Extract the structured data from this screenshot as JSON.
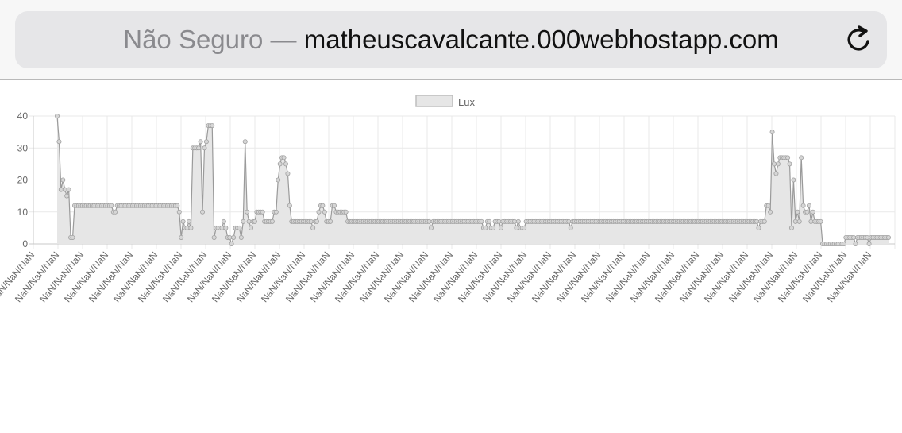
{
  "browser": {
    "insecure_label": "Não Seguro —",
    "domain": "matheuscavalcante.000webhostapp.com",
    "reload_icon": "reload-icon"
  },
  "chart_data": {
    "type": "line",
    "legend": {
      "label": "Lux",
      "position": "top"
    },
    "ylim": [
      0,
      40
    ],
    "yticks": [
      "0",
      "10",
      "20",
      "30",
      "40"
    ],
    "grid": true,
    "fill_color": "#e6e6e6",
    "line_color": "#9a9a9a",
    "x_tick_labels": [
      "NaN/NaN/NaN",
      "NaN/NaN/NaN",
      "NaN/NaN/NaN",
      "NaN/NaN/NaN",
      "NaN/NaN/NaN",
      "NaN/NaN/NaN",
      "NaN/NaN/NaN",
      "NaN/NaN/NaN",
      "NaN/NaN/NaN",
      "NaN/NaN/NaN",
      "NaN/NaN/NaN",
      "NaN/NaN/NaN",
      "NaN/NaN/NaN",
      "NaN/NaN/NaN",
      "NaN/NaN/NaN",
      "NaN/NaN/NaN",
      "NaN/NaN/NaN",
      "NaN/NaN/NaN",
      "NaN/NaN/NaN",
      "NaN/NaN/NaN",
      "NaN/NaN/NaN",
      "NaN/NaN/NaN",
      "NaN/NaN/NaN",
      "NaN/NaN/NaN",
      "NaN/NaN/NaN",
      "NaN/NaN/NaN",
      "NaN/NaN/NaN",
      "NaN/NaN/NaN",
      "NaN/NaN/NaN",
      "NaN/NaN/NaN",
      "NaN/NaN/NaN",
      "NaN/NaN/NaN",
      "NaN/NaN/NaN",
      "NaN/NaN/NaN",
      "NaN/NaN/NaN"
    ],
    "series": [
      {
        "name": "Lux",
        "values": [
          40,
          32,
          17,
          20,
          17,
          15,
          17,
          2,
          2,
          12,
          12,
          12,
          12,
          12,
          12,
          12,
          12,
          12,
          12,
          12,
          12,
          12,
          12,
          12,
          12,
          12,
          12,
          12,
          12,
          10,
          10,
          12,
          12,
          12,
          12,
          12,
          12,
          12,
          12,
          12,
          12,
          12,
          12,
          12,
          12,
          12,
          12,
          12,
          12,
          12,
          12,
          12,
          12,
          12,
          12,
          12,
          12,
          12,
          12,
          12,
          12,
          12,
          12,
          10,
          2,
          7,
          5,
          5,
          7,
          5,
          30,
          30,
          30,
          30,
          32,
          10,
          30,
          32,
          37,
          37,
          37,
          2,
          5,
          5,
          5,
          5,
          7,
          5,
          2,
          2,
          0,
          2,
          5,
          5,
          5,
          2,
          7,
          32,
          10,
          7,
          5,
          7,
          7,
          10,
          10,
          10,
          10,
          7,
          7,
          7,
          7,
          7,
          10,
          10,
          20,
          25,
          27,
          27,
          25,
          22,
          12,
          7,
          7,
          7,
          7,
          7,
          7,
          7,
          7,
          7,
          7,
          7,
          5,
          7,
          7,
          10,
          12,
          12,
          10,
          7,
          7,
          7,
          12,
          12,
          10,
          10,
          10,
          10,
          10,
          10,
          7,
          7,
          7,
          7,
          7,
          7,
          7,
          7,
          7,
          7,
          7,
          7,
          7,
          7,
          7,
          7,
          7,
          7,
          7,
          7,
          7,
          7,
          7,
          7,
          7,
          7,
          7,
          7,
          7,
          7,
          7,
          7,
          7,
          7,
          7,
          7,
          7,
          7,
          7,
          7,
          7,
          7,
          7,
          5,
          7,
          7,
          7,
          7,
          7,
          7,
          7,
          7,
          7,
          7,
          7,
          7,
          7,
          7,
          7,
          7,
          7,
          7,
          7,
          7,
          7,
          7,
          7,
          7,
          7,
          7,
          5,
          5,
          7,
          7,
          5,
          5,
          7,
          7,
          7,
          5,
          7,
          7,
          7,
          7,
          7,
          7,
          7,
          5,
          7,
          5,
          5,
          5,
          7,
          7,
          7,
          7,
          7,
          7,
          7,
          7,
          7,
          7,
          7,
          7,
          7,
          7,
          7,
          7,
          7,
          7,
          7,
          7,
          7,
          7,
          7,
          5,
          7,
          7,
          7,
          7,
          7,
          7,
          7,
          7,
          7,
          7,
          7,
          7,
          7,
          7,
          7,
          7,
          7,
          7,
          7,
          7,
          7,
          7,
          7,
          7,
          7,
          7,
          7,
          7,
          7,
          7,
          7,
          7,
          7,
          7,
          7,
          7,
          7,
          7,
          7,
          7,
          7,
          7,
          7,
          7,
          7,
          7,
          7,
          7,
          7,
          7,
          7,
          7,
          7,
          7,
          7,
          7,
          7,
          7,
          7,
          7,
          7,
          7,
          7,
          7,
          7,
          7,
          7,
          7,
          7,
          7,
          7,
          7,
          7,
          7,
          7,
          7,
          7,
          7,
          7,
          7,
          7,
          7,
          7,
          7,
          7,
          7,
          7,
          7,
          7,
          7,
          7,
          7,
          7,
          7,
          7,
          7,
          5,
          7,
          7,
          7,
          12,
          12,
          10,
          35,
          25,
          22,
          25,
          27,
          27,
          27,
          27,
          27,
          25,
          5,
          20,
          7,
          10,
          7,
          27,
          12,
          10,
          10,
          12,
          7,
          10,
          7,
          7,
          7,
          7,
          0,
          0,
          0,
          0,
          0,
          0,
          0,
          0,
          0,
          0,
          0,
          0,
          2,
          2,
          2,
          2,
          2,
          0,
          2,
          2,
          2,
          2,
          2,
          2,
          0,
          2,
          2,
          2,
          2,
          2,
          2,
          2,
          2,
          2,
          2
        ]
      }
    ]
  }
}
